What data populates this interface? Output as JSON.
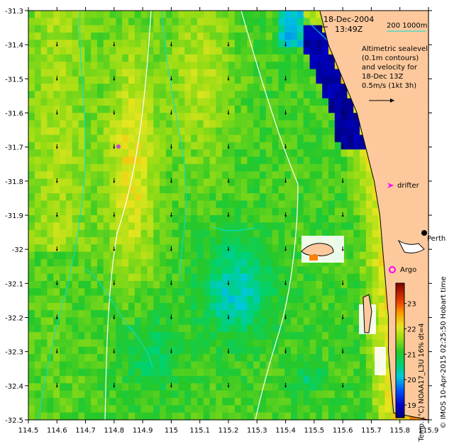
{
  "chart_data": {
    "type": "heatmap",
    "subtype": "sea-surface-temperature map",
    "x_axis": {
      "range": [
        114.5,
        115.9
      ],
      "ticks": [
        "114.5",
        "114.6",
        "114.7",
        "114.8",
        "114.9",
        "115",
        "115.1",
        "115.2",
        "115.3",
        "115.4",
        "115.5",
        "115.6",
        "115.7",
        "115.8",
        "115.9"
      ]
    },
    "y_axis": {
      "range": [
        -32.5,
        -31.3
      ],
      "ticks": [
        "-31.3",
        "-31.4",
        "-31.5",
        "-31.6",
        "-31.7",
        "-31.8",
        "-31.9",
        "-32",
        "-32.1",
        "-32.2",
        "-32.3",
        "-32.4",
        "-32.5"
      ]
    },
    "colorbar": {
      "label": "Temp. (°C) NOAA17_L3U 16% dt=4",
      "range": [
        18.5,
        23.8
      ],
      "ticks": [
        "19",
        "20",
        "21",
        "22",
        "23"
      ]
    },
    "date_label": "18-Dec-2004",
    "time_label": "13:49Z",
    "depth_legend": "200  1000m",
    "altimetry_note": [
      "Altimetric sealevel",
      "(0.1m contours)",
      "and velocity for",
      "18-Dec 13Z",
      "0.5m/s (1kt 3h)"
    ],
    "markers": [
      {
        "label": "drifter",
        "lon": 115.73,
        "lat": -31.82,
        "color": "#ff00ff"
      },
      {
        "label": "Argo",
        "lon": 115.74,
        "lat": -32.05,
        "color": "#ff00ff"
      },
      {
        "label": "",
        "lon": 114.81,
        "lat": -31.69,
        "color": "#cc44cc"
      }
    ],
    "places": [
      {
        "label": "Perth",
        "lon": 115.86,
        "lat": -31.95
      }
    ],
    "credit": "© IMOS 10-Apr-2015 02:25:50 Hobart time",
    "colors": {
      "land": "#fdc99c",
      "coast": "#000000",
      "bathy": "#00e0e0",
      "contour": "#ffffff",
      "marker": "#ff00ff"
    }
  }
}
